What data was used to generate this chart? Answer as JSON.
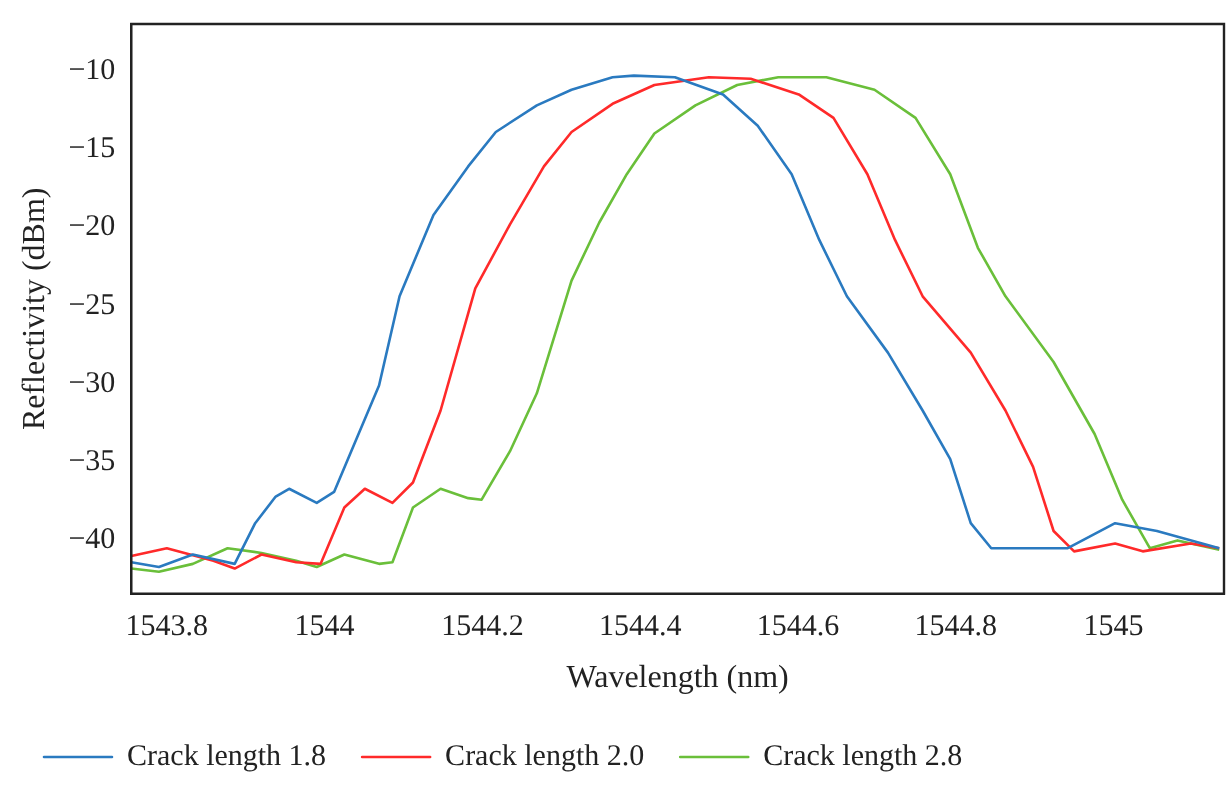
{
  "chart_data": {
    "type": "line",
    "xlabel": "Wavelength (nm)",
    "ylabel": "Reflectivity (dBm)",
    "xlim": [
      1543.755,
      1545.14
    ],
    "ylim": [
      -43.4,
      -7
    ],
    "xticks": [
      1543.8,
      1544,
      1544.2,
      1544.4,
      1544.6,
      1544.8,
      1545
    ],
    "yticks": [
      -10,
      -15,
      -20,
      -25,
      -30,
      -35,
      -40
    ],
    "grid": false,
    "legend": "bottom left",
    "marker": "none",
    "line_style": "solid",
    "series": [
      {
        "name": "Crack length 1.8",
        "color": "#2a7ac0",
        "x": [
          1543.755,
          1543.79,
          1543.833,
          1543.886,
          1543.912,
          1543.938,
          1543.955,
          1543.99,
          1544.012,
          1544.043,
          1544.069,
          1544.095,
          1544.138,
          1544.182,
          1544.217,
          1544.269,
          1544.313,
          1544.365,
          1544.392,
          1544.444,
          1544.505,
          1544.549,
          1544.592,
          1544.627,
          1544.662,
          1544.714,
          1544.758,
          1544.793,
          1544.819,
          1544.845,
          1544.871,
          1544.942,
          1545.002,
          1545.055,
          1545.134
        ],
        "values": [
          -41.4,
          -41.7,
          -40.9,
          -41.5,
          -38.9,
          -37.2,
          -36.7,
          -37.6,
          -36.9,
          -33.2,
          -30.1,
          -24.4,
          -19.2,
          -16.1,
          -13.9,
          -12.2,
          -11.2,
          -10.4,
          -10.3,
          -10.4,
          -11.5,
          -13.5,
          -16.6,
          -20.8,
          -24.4,
          -28,
          -31.7,
          -34.8,
          -38.9,
          -40.5,
          -40.5,
          -40.5,
          -38.9,
          -39.4,
          -40.5
        ]
      },
      {
        "name": "Crack length 2.0",
        "color": "#ff2a2a",
        "x": [
          1543.755,
          1543.8,
          1543.859,
          1543.886,
          1543.92,
          1543.964,
          1543.995,
          1544.025,
          1544.051,
          1544.086,
          1544.112,
          1544.147,
          1544.191,
          1544.235,
          1544.278,
          1544.313,
          1544.365,
          1544.418,
          1544.487,
          1544.54,
          1544.601,
          1544.645,
          1544.688,
          1544.723,
          1544.758,
          1544.819,
          1544.863,
          1544.898,
          1544.924,
          1544.95,
          1545.002,
          1545.037,
          1545.098,
          1545.134
        ],
        "values": [
          -41,
          -40.5,
          -41.3,
          -41.8,
          -40.9,
          -41.4,
          -41.5,
          -37.9,
          -36.7,
          -37.6,
          -36.3,
          -31.7,
          -23.9,
          -19.8,
          -16.1,
          -13.9,
          -12.1,
          -10.9,
          -10.4,
          -10.5,
          -11.5,
          -13,
          -16.6,
          -20.8,
          -24.4,
          -28,
          -31.7,
          -35.3,
          -39.4,
          -40.7,
          -40.2,
          -40.7,
          -40.2,
          -40.5
        ]
      },
      {
        "name": "Crack length 2.8",
        "color": "#6abf3a",
        "x": [
          1543.755,
          1543.79,
          1543.833,
          1543.877,
          1543.92,
          1543.964,
          1543.99,
          1544.025,
          1544.069,
          1544.086,
          1544.112,
          1544.147,
          1544.182,
          1544.199,
          1544.235,
          1544.269,
          1544.313,
          1544.348,
          1544.383,
          1544.418,
          1544.47,
          1544.523,
          1544.575,
          1544.636,
          1544.697,
          1544.749,
          1544.793,
          1544.828,
          1544.863,
          1544.924,
          1544.976,
          1545.011,
          1545.046,
          1545.081,
          1545.134
        ],
        "values": [
          -41.8,
          -42,
          -41.5,
          -40.5,
          -40.8,
          -41.3,
          -41.7,
          -40.9,
          -41.5,
          -41.4,
          -37.9,
          -36.7,
          -37.3,
          -37.4,
          -34.3,
          -30.6,
          -23.4,
          -19.7,
          -16.6,
          -14,
          -12.2,
          -10.9,
          -10.4,
          -10.4,
          -11.2,
          -13,
          -16.6,
          -21.3,
          -24.4,
          -28.6,
          -33.2,
          -37.4,
          -40.5,
          -40,
          -40.6
        ]
      }
    ]
  }
}
